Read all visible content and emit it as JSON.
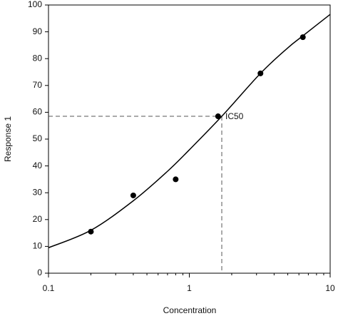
{
  "chart_data": {
    "type": "scatter",
    "xlabel": "Concentration",
    "ylabel": "Response 1",
    "xscale": "log",
    "xlim": [
      0.1,
      10
    ],
    "xticks": [
      0.1,
      1,
      10
    ],
    "xminorticks": [
      0.2,
      0.3,
      0.4,
      0.5,
      0.6,
      0.7,
      0.8,
      0.9,
      2,
      3,
      4,
      5,
      6,
      7,
      8,
      9
    ],
    "ylim": [
      0,
      100
    ],
    "yticks": [
      0,
      10,
      20,
      30,
      40,
      50,
      60,
      70,
      80,
      90,
      100
    ],
    "grid": false,
    "series": [
      {
        "type": "scatter",
        "color": "#000000",
        "x": [
          0.2,
          0.4,
          0.8,
          1.6,
          3.2,
          6.4
        ],
        "values": [
          15.5,
          29,
          35,
          58.5,
          74.5,
          88
        ]
      },
      {
        "type": "line",
        "color": "#000000",
        "x": [
          0.1,
          0.2,
          0.4,
          0.7,
          1,
          1.7,
          3.2,
          5,
          6.4,
          10
        ],
        "values": [
          9.5,
          16,
          27,
          38,
          46,
          58.5,
          74.5,
          84,
          88.5,
          96.5
        ]
      }
    ],
    "annotations": [
      {
        "text": "IC50",
        "x": 1.7,
        "y": 58.5
      }
    ]
  }
}
